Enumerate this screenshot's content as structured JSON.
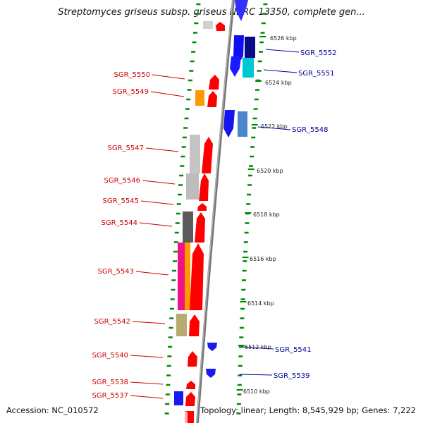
{
  "title": "Streptomyces griseus subsp. griseus NBRC 13350, complete gen...",
  "footer": {
    "accession": "Accession: NC_010572",
    "topology": "Topology: linear; Length: 8,545,929 bp; Genes: 7,222"
  },
  "colors": {
    "forward_gene": "#ff0000",
    "reverse_gene": "#0000ee",
    "left_label": "#cc0000",
    "right_label": "#000099",
    "ruler_dots": "#008800",
    "backbone": "#888888"
  },
  "kbp_ticks": [
    "6526 kbp",
    "6524 kbp",
    "6522 kbp",
    "6520 kbp",
    "6518 kbp",
    "6516 kbp",
    "6514 kbp",
    "6512 kbp",
    "6510 kbp"
  ],
  "left_labels": [
    "SGR_5550",
    "SGR_5549",
    "SGR_5547",
    "SGR_5546",
    "SGR_5545",
    "SGR_5544",
    "SGR_5543",
    "SGR_5542",
    "SGR_5540",
    "SGR_5538",
    "SGR_5537"
  ],
  "right_labels": [
    "SGR_5552",
    "SGR_5551",
    "SGR_5548",
    "SGR_5541",
    "SGR_5539"
  ]
}
